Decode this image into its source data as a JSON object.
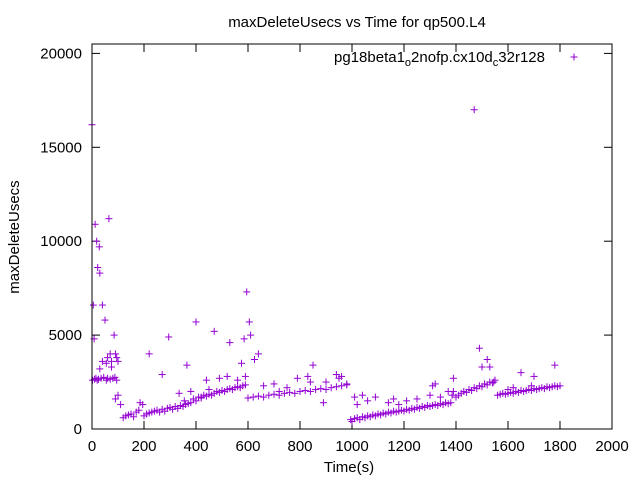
{
  "chart_data": {
    "type": "scatter",
    "title": "maxDeleteUsecs vs Time for qp500.L4",
    "xlabel": "Time(s)",
    "ylabel": "maxDeleteUsecs",
    "xlim": [
      0,
      2000
    ],
    "ylim": [
      0,
      20500
    ],
    "xticks": [
      0,
      200,
      400,
      600,
      800,
      1000,
      1200,
      1400,
      1600,
      1800,
      2000
    ],
    "yticks": [
      0,
      5000,
      10000,
      15000,
      20000
    ],
    "grid": false,
    "legend": {
      "placement": "top-right"
    },
    "colors": {
      "series": "#9400d3"
    },
    "series": [
      {
        "name_parts": {
          "a": "pg18beta1",
          "b": "o",
          "c": "2nofp.cx10d",
          "d": "c",
          "e": "32r128"
        },
        "points": [
          [
            0,
            16200
          ],
          [
            5,
            6600
          ],
          [
            8,
            4800
          ],
          [
            12,
            10900
          ],
          [
            18,
            10000
          ],
          [
            22,
            8600
          ],
          [
            28,
            9700
          ],
          [
            30,
            8300
          ],
          [
            40,
            6600
          ],
          [
            50,
            5800
          ],
          [
            65,
            11200
          ],
          [
            70,
            4000
          ],
          [
            75,
            3300
          ],
          [
            85,
            5000
          ],
          [
            90,
            4000
          ],
          [
            95,
            3800
          ],
          [
            100,
            3600
          ],
          [
            2,
            2600
          ],
          [
            10,
            2650
          ],
          [
            15,
            2700
          ],
          [
            20,
            2600
          ],
          [
            25,
            2650
          ],
          [
            35,
            2700
          ],
          [
            45,
            2750
          ],
          [
            55,
            2600
          ],
          [
            60,
            2700
          ],
          [
            70,
            2650
          ],
          [
            80,
            2700
          ],
          [
            88,
            2750
          ],
          [
            95,
            2600
          ],
          [
            30,
            3200
          ],
          [
            40,
            3600
          ],
          [
            55,
            3500
          ],
          [
            60,
            3800
          ],
          [
            75,
            3600
          ],
          [
            90,
            1600
          ],
          [
            100,
            1800
          ],
          [
            110,
            1300
          ],
          [
            120,
            600
          ],
          [
            130,
            700
          ],
          [
            140,
            750
          ],
          [
            150,
            800
          ],
          [
            160,
            650
          ],
          [
            170,
            900
          ],
          [
            180,
            1000
          ],
          [
            185,
            1400
          ],
          [
            195,
            1300
          ],
          [
            200,
            700
          ],
          [
            210,
            800
          ],
          [
            220,
            850
          ],
          [
            230,
            900
          ],
          [
            240,
            950
          ],
          [
            250,
            1000
          ],
          [
            260,
            900
          ],
          [
            270,
            1050
          ],
          [
            280,
            950
          ],
          [
            290,
            1100
          ],
          [
            300,
            1150
          ],
          [
            310,
            1050
          ],
          [
            320,
            1200
          ],
          [
            330,
            1100
          ],
          [
            340,
            1250
          ],
          [
            350,
            1200
          ],
          [
            360,
            1300
          ],
          [
            370,
            1350
          ],
          [
            220,
            4000
          ],
          [
            270,
            2900
          ],
          [
            295,
            4900
          ],
          [
            335,
            1900
          ],
          [
            355,
            1500
          ],
          [
            365,
            3400
          ],
          [
            380,
            2000
          ],
          [
            400,
            5700
          ],
          [
            420,
            1700
          ],
          [
            440,
            2600
          ],
          [
            450,
            2100
          ],
          [
            470,
            5200
          ],
          [
            490,
            2700
          ],
          [
            520,
            2800
          ],
          [
            530,
            4600
          ],
          [
            560,
            2600
          ],
          [
            575,
            3500
          ],
          [
            590,
            2800
          ],
          [
            380,
            1400
          ],
          [
            390,
            1600
          ],
          [
            400,
            1500
          ],
          [
            410,
            1700
          ],
          [
            420,
            1650
          ],
          [
            430,
            1800
          ],
          [
            440,
            1750
          ],
          [
            450,
            1850
          ],
          [
            460,
            1800
          ],
          [
            470,
            1900
          ],
          [
            480,
            2000
          ],
          [
            490,
            1950
          ],
          [
            500,
            2050
          ],
          [
            510,
            2000
          ],
          [
            520,
            2100
          ],
          [
            530,
            2150
          ],
          [
            540,
            2100
          ],
          [
            550,
            2200
          ],
          [
            560,
            2250
          ],
          [
            570,
            2200
          ],
          [
            580,
            2300
          ],
          [
            590,
            2350
          ],
          [
            585,
            4800
          ],
          [
            595,
            7300
          ],
          [
            605,
            5700
          ],
          [
            610,
            5000
          ],
          [
            625,
            3700
          ],
          [
            640,
            4000
          ],
          [
            660,
            2300
          ],
          [
            700,
            2400
          ],
          [
            750,
            2200
          ],
          [
            830,
            2800
          ],
          [
            850,
            3400
          ],
          [
            900,
            2500
          ],
          [
            950,
            2700
          ],
          [
            980,
            2400
          ],
          [
            600,
            1650
          ],
          [
            620,
            1700
          ],
          [
            640,
            1750
          ],
          [
            660,
            1700
          ],
          [
            680,
            1800
          ],
          [
            700,
            1850
          ],
          [
            720,
            1800
          ],
          [
            740,
            1900
          ],
          [
            760,
            1950
          ],
          [
            780,
            1900
          ],
          [
            800,
            2000
          ],
          [
            820,
            2050
          ],
          [
            840,
            2000
          ],
          [
            860,
            2100
          ],
          [
            880,
            2150
          ],
          [
            900,
            2100
          ],
          [
            920,
            2200
          ],
          [
            940,
            2250
          ],
          [
            960,
            2300
          ],
          [
            980,
            2350
          ],
          [
            720,
            2000
          ],
          [
            790,
            2700
          ],
          [
            840,
            2500
          ],
          [
            890,
            1400
          ],
          [
            940,
            2900
          ],
          [
            960,
            2800
          ],
          [
            995,
            500
          ],
          [
            1000,
            400
          ],
          [
            1010,
            550
          ],
          [
            1020,
            600
          ],
          [
            1030,
            500
          ],
          [
            1040,
            650
          ],
          [
            1050,
            600
          ],
          [
            1060,
            700
          ],
          [
            1070,
            650
          ],
          [
            1080,
            750
          ],
          [
            1090,
            700
          ],
          [
            1100,
            800
          ],
          [
            1110,
            750
          ],
          [
            1120,
            850
          ],
          [
            1130,
            800
          ],
          [
            1140,
            900
          ],
          [
            1150,
            850
          ],
          [
            1160,
            950
          ],
          [
            1170,
            900
          ],
          [
            1180,
            950
          ],
          [
            1190,
            1000
          ],
          [
            1200,
            950
          ],
          [
            1210,
            1050
          ],
          [
            1220,
            1000
          ],
          [
            1230,
            1100
          ],
          [
            1240,
            1050
          ],
          [
            1250,
            1150
          ],
          [
            1260,
            1100
          ],
          [
            1270,
            1200
          ],
          [
            1280,
            1150
          ],
          [
            1290,
            1250
          ],
          [
            1300,
            1200
          ],
          [
            1310,
            1250
          ],
          [
            1320,
            1300
          ],
          [
            1330,
            1250
          ],
          [
            1340,
            1350
          ],
          [
            1350,
            1300
          ],
          [
            1360,
            1400
          ],
          [
            1370,
            1350
          ],
          [
            1380,
            1400
          ],
          [
            1010,
            1700
          ],
          [
            1020,
            1300
          ],
          [
            1040,
            1800
          ],
          [
            1060,
            1500
          ],
          [
            1090,
            1700
          ],
          [
            1140,
            1400
          ],
          [
            1160,
            1600
          ],
          [
            1180,
            1300
          ],
          [
            1210,
            1500
          ],
          [
            1250,
            1600
          ],
          [
            1300,
            1800
          ],
          [
            1310,
            2300
          ],
          [
            1320,
            2400
          ],
          [
            1340,
            1700
          ],
          [
            1370,
            2000
          ],
          [
            1390,
            2700
          ],
          [
            1385,
            1800
          ],
          [
            1390,
            2000
          ],
          [
            1400,
            1700
          ],
          [
            1410,
            1800
          ],
          [
            1420,
            1900
          ],
          [
            1430,
            2000
          ],
          [
            1440,
            1950
          ],
          [
            1450,
            2100
          ],
          [
            1460,
            2050
          ],
          [
            1470,
            2200
          ],
          [
            1480,
            2150
          ],
          [
            1490,
            2300
          ],
          [
            1500,
            2250
          ],
          [
            1510,
            2400
          ],
          [
            1520,
            2350
          ],
          [
            1530,
            2500
          ],
          [
            1540,
            2450
          ],
          [
            1550,
            2600
          ],
          [
            1470,
            17000
          ],
          [
            1490,
            4300
          ],
          [
            1500,
            3300
          ],
          [
            1520,
            3700
          ],
          [
            1530,
            3300
          ],
          [
            1545,
            2500
          ],
          [
            1560,
            1800
          ],
          [
            1570,
            1850
          ],
          [
            1580,
            1900
          ],
          [
            1590,
            1850
          ],
          [
            1600,
            1900
          ],
          [
            1610,
            1950
          ],
          [
            1620,
            1900
          ],
          [
            1630,
            2000
          ],
          [
            1640,
            1950
          ],
          [
            1650,
            2050
          ],
          [
            1660,
            2000
          ],
          [
            1670,
            2050
          ],
          [
            1680,
            2100
          ],
          [
            1690,
            2050
          ],
          [
            1700,
            2150
          ],
          [
            1710,
            2100
          ],
          [
            1720,
            2150
          ],
          [
            1730,
            2200
          ],
          [
            1740,
            2150
          ],
          [
            1750,
            2250
          ],
          [
            1760,
            2200
          ],
          [
            1770,
            2250
          ],
          [
            1780,
            2300
          ],
          [
            1790,
            2250
          ],
          [
            1800,
            2300
          ],
          [
            1650,
            3000
          ],
          [
            1700,
            2800
          ],
          [
            1780,
            3400
          ],
          [
            1600,
            2100
          ],
          [
            1620,
            2200
          ],
          [
            1690,
            2300
          ]
        ]
      }
    ]
  }
}
